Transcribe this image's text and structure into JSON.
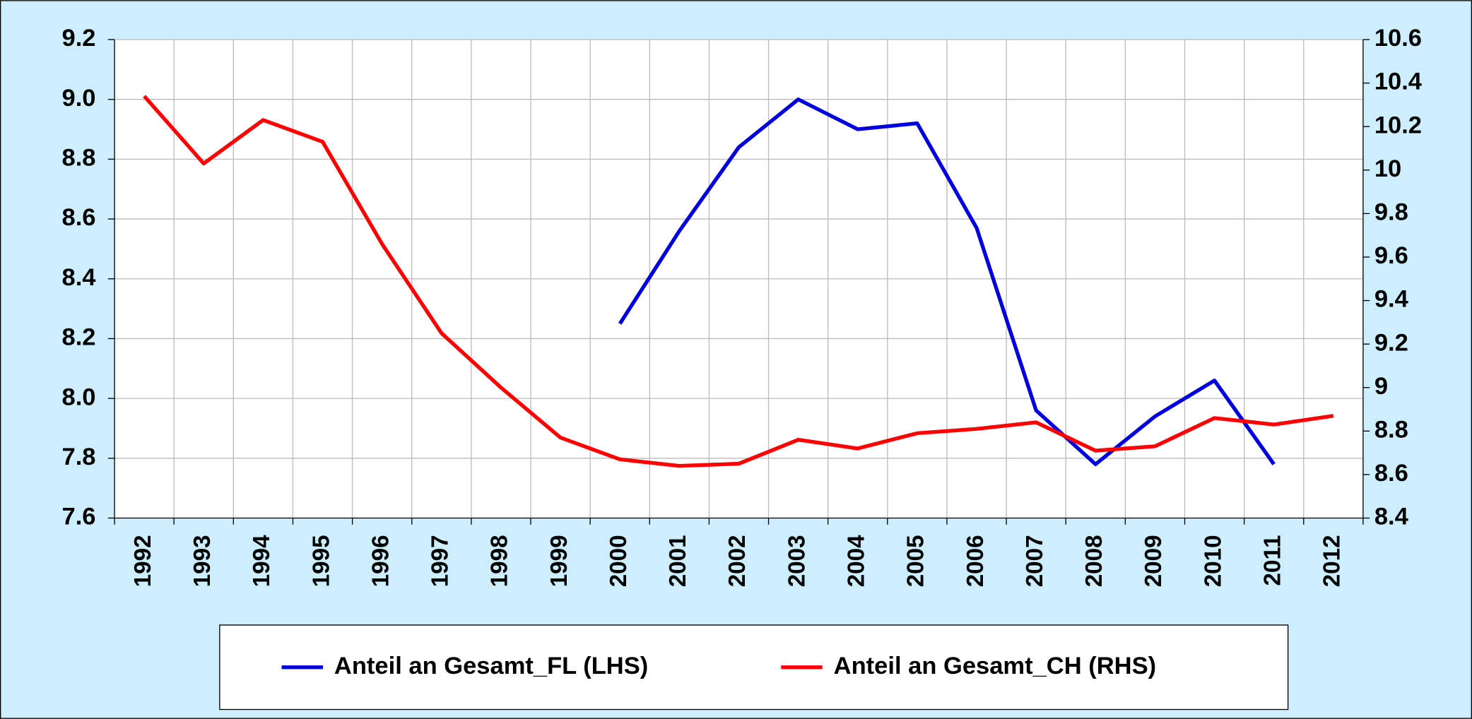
{
  "chart_data": {
    "type": "line",
    "categories": [
      "1992",
      "1993",
      "1994",
      "1995",
      "1996",
      "1997",
      "1998",
      "1999",
      "2000",
      "2001",
      "2002",
      "2003",
      "2004",
      "2005",
      "2006",
      "2007",
      "2008",
      "2009",
      "2010",
      "2011",
      "2012"
    ],
    "series": [
      {
        "name": "Anteil an Gesamt_FL (LHS)",
        "color": "#0000dd",
        "axis": "y",
        "values": [
          null,
          null,
          null,
          null,
          null,
          null,
          null,
          null,
          8.25,
          8.56,
          8.84,
          9.0,
          8.9,
          8.92,
          8.57,
          7.96,
          7.78,
          7.94,
          8.06,
          7.78,
          null
        ]
      },
      {
        "name": "Anteil an Gesamt_CH (RHS)",
        "color": "#ff0000",
        "axis": "y2",
        "values": [
          10.34,
          10.03,
          10.23,
          10.13,
          9.66,
          9.25,
          9.0,
          8.77,
          8.67,
          8.64,
          8.65,
          8.76,
          8.72,
          8.79,
          8.81,
          8.84,
          8.71,
          8.73,
          8.86,
          8.83,
          8.87
        ]
      }
    ],
    "ylim": [
      7.6,
      9.2
    ],
    "yticks": [
      7.6,
      7.8,
      {
        "value": 8,
        "label": "8.0"
      },
      8.2,
      8.4,
      8.6,
      8.8,
      {
        "value": 9,
        "label": "9.0"
      },
      9.2
    ],
    "y2lim": [
      8.4,
      10.6
    ],
    "y2ticks": [
      8.4,
      8.6,
      8.8,
      9,
      9.2,
      9.4,
      9.6,
      9.8,
      10,
      10.2,
      10.4,
      10.6
    ],
    "grid": true,
    "legend": "bottom"
  }
}
